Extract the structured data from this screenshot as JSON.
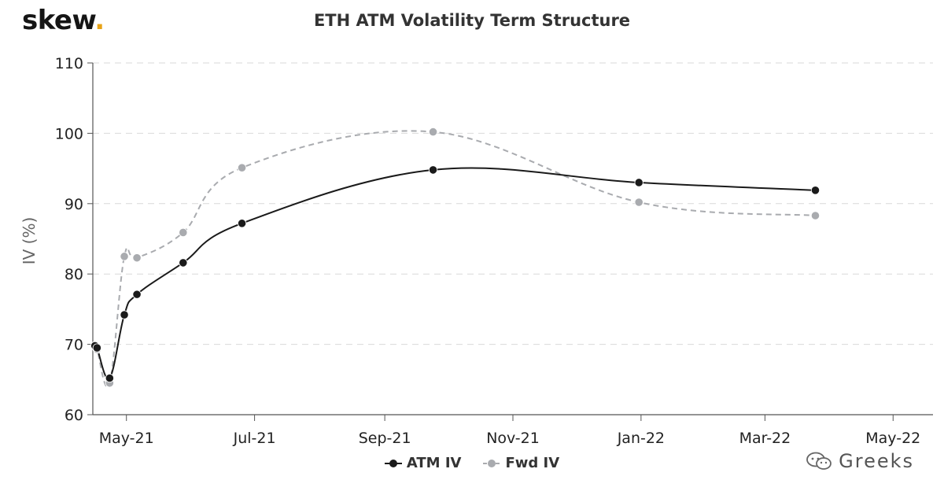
{
  "brand": {
    "name": "skew",
    "dot": "."
  },
  "watermark": {
    "text": "Greeks"
  },
  "colors": {
    "atm": "#1a1a1a",
    "fwd": "#a9abaf",
    "grid": "#d9d9d9",
    "axis": "#555555",
    "brand_dot": "#e8a317"
  },
  "chart_data": {
    "type": "line",
    "title": "ETH ATM Volatility Term Structure",
    "ylabel": "IV (%)",
    "xlabel": "",
    "ylim": [
      60,
      110
    ],
    "yticks": [
      60,
      70,
      80,
      90,
      100,
      110
    ],
    "xlim": [
      "2021-04-15",
      "2022-05-20"
    ],
    "xticks": [
      {
        "date": "2021-05-01",
        "label": "May-21"
      },
      {
        "date": "2021-07-01",
        "label": "Jul-21"
      },
      {
        "date": "2021-09-01",
        "label": "Sep-21"
      },
      {
        "date": "2021-11-01",
        "label": "Nov-21"
      },
      {
        "date": "2022-01-01",
        "label": "Jan-22"
      },
      {
        "date": "2022-03-01",
        "label": "Mar-22"
      },
      {
        "date": "2022-05-01",
        "label": "May-22"
      }
    ],
    "grid": true,
    "legend_position": "bottom-center",
    "series": [
      {
        "name": "ATM IV",
        "style": "solid",
        "x": [
          "2021-04-16",
          "2021-04-17",
          "2021-04-23",
          "2021-04-30",
          "2021-05-06",
          "2021-05-28",
          "2021-06-25",
          "2021-09-24",
          "2021-12-31",
          "2022-03-25"
        ],
        "values": [
          69.8,
          69.5,
          65.2,
          74.2,
          77.1,
          81.6,
          87.2,
          94.8,
          93.0,
          91.9
        ]
      },
      {
        "name": "Fwd IV",
        "style": "dashed",
        "x": [
          "2021-04-16",
          "2021-04-17",
          "2021-04-23",
          "2021-04-30",
          "2021-05-06",
          "2021-05-28",
          "2021-06-25",
          "2021-09-24",
          "2021-12-31",
          "2022-03-25"
        ],
        "values": [
          69.8,
          69.3,
          64.5,
          82.5,
          82.3,
          85.9,
          95.1,
          100.2,
          90.2,
          88.3
        ]
      }
    ]
  }
}
